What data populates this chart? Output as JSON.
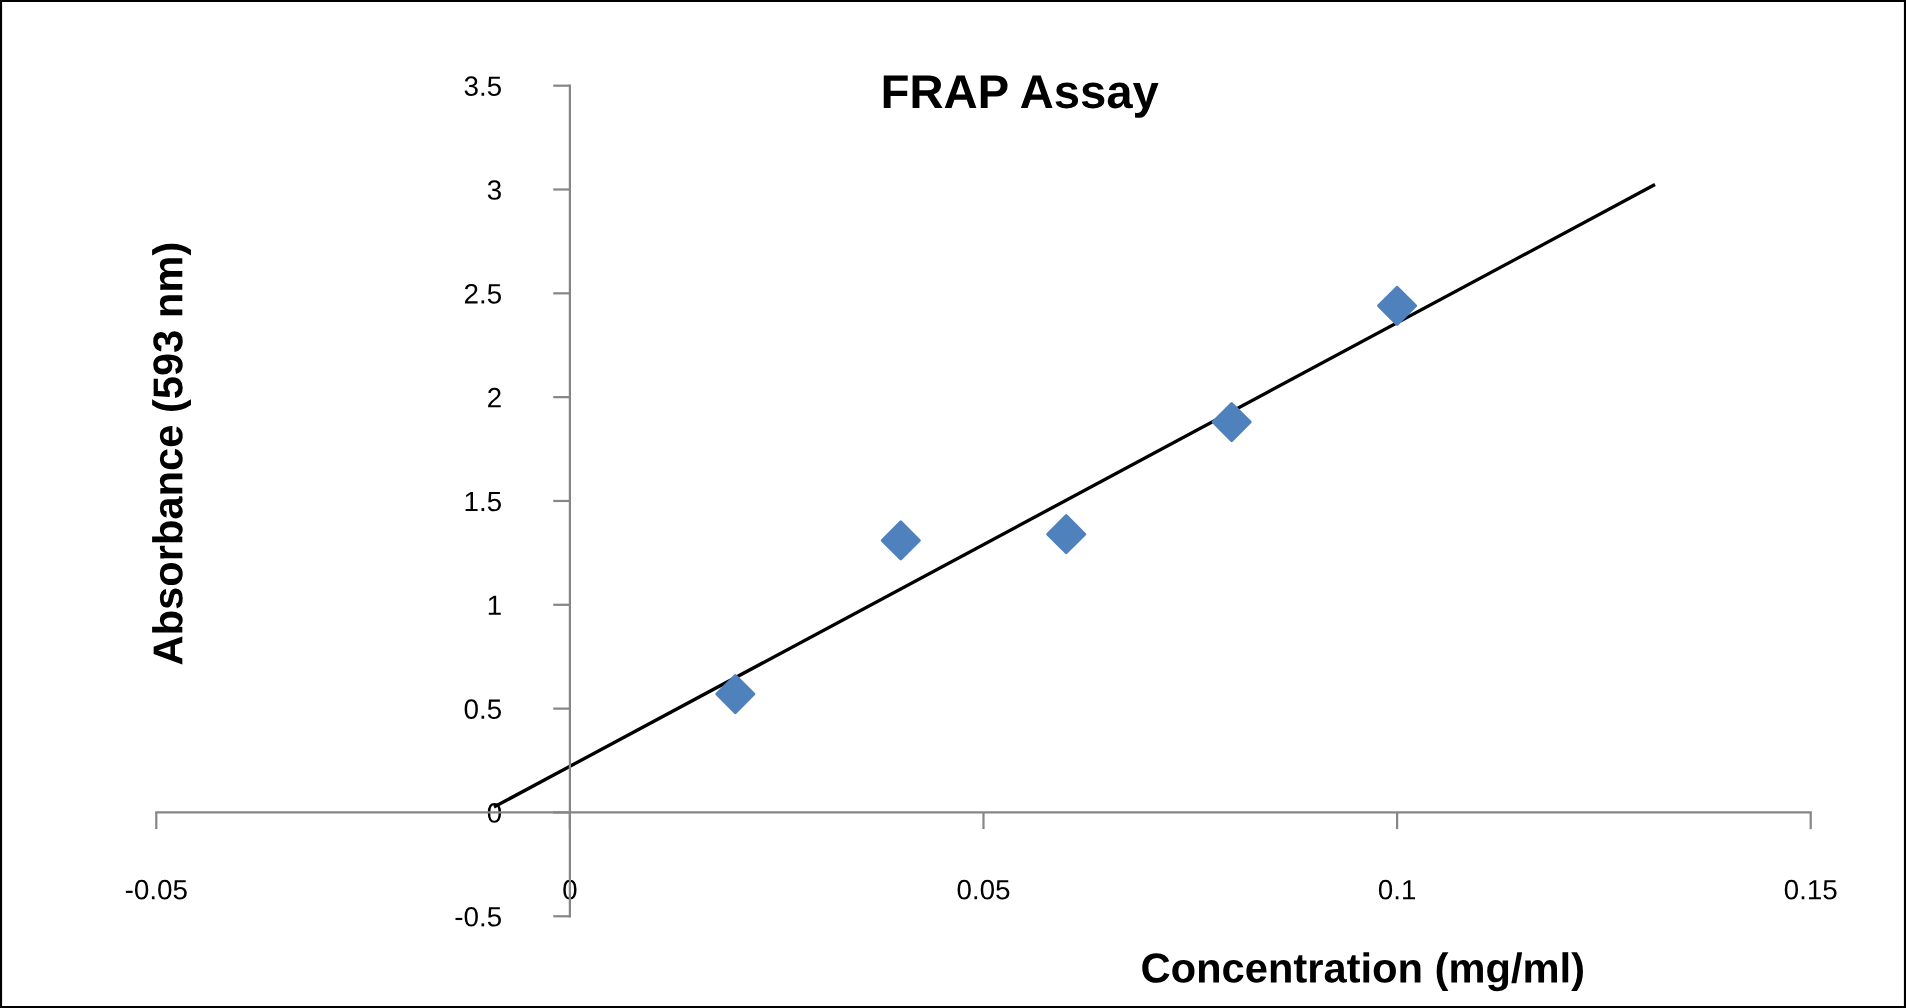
{
  "chart_data": {
    "type": "scatter",
    "title": "FRAP Assay",
    "xlabel": "Concentration (mg/ml)",
    "ylabel": "Absorbance (593 nm)",
    "xlim": [
      -0.05,
      0.15
    ],
    "xticks": [
      -0.05,
      0,
      0.05,
      0.1,
      0.15
    ],
    "ylim": [
      -0.5,
      3.5
    ],
    "yticks": [
      -0.5,
      0,
      0.5,
      1,
      1.5,
      2,
      2.5,
      3,
      3.5
    ],
    "grid": false,
    "series": [
      {
        "color": "#4f81bd",
        "marker": "diamond",
        "x": [
          0.02,
          0.04,
          0.06,
          0.08,
          0.1
        ],
        "values": [
          0.57,
          1.31,
          1.34,
          1.88,
          2.44
        ]
      },
      {
        "type": "line",
        "color": "#000000",
        "marker": "none",
        "line_style": "solid",
        "x": [
          -0.009,
          0.131
        ],
        "values": [
          0.03,
          3.02
        ]
      }
    ]
  }
}
